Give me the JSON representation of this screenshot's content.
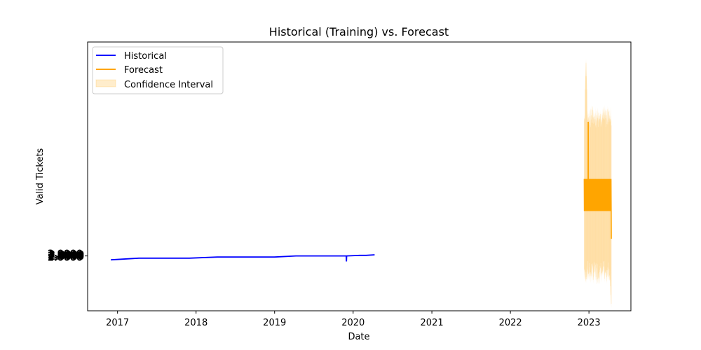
{
  "chart_data": {
    "type": "line",
    "title": "Historical (Training) vs. Forecast",
    "xlabel": "Date",
    "ylabel": "Valid Tickets",
    "xlim": [
      "2016-08-15",
      "2023-07-15"
    ],
    "ylim": [
      -0.95,
      3.9
    ],
    "x_ticks": [
      "2017",
      "2018",
      "2019",
      "2020",
      "2021",
      "2022",
      "2023"
    ],
    "y_ticks_note": "overlapping unreadable tick labels",
    "y_tick_labels": [
      "2.0000",
      "2.0000",
      "2.0000",
      "2.0000",
      "2.0000"
    ],
    "legend": {
      "position": "upper left",
      "entries": [
        {
          "name": "Historical",
          "color": "#0000ff",
          "kind": "line"
        },
        {
          "name": "Forecast",
          "color": "#ffa500",
          "kind": "line"
        },
        {
          "name": "Confidence Interval",
          "color": "#ffa500",
          "kind": "band"
        }
      ]
    },
    "grid": false,
    "series": [
      {
        "name": "Historical",
        "color": "#0000ff",
        "x": [
          "2016-12-01",
          "2017-04-10",
          "2017-12-01",
          "2018-04-10",
          "2018-12-31",
          "2019-04-10",
          "2019-11-30",
          "2019-12-01",
          "2019-12-02",
          "2020-02-01",
          "2020-03-01",
          "2020-04-10"
        ],
        "y": [
          -0.03,
          0.0,
          0.0,
          0.02,
          0.02,
          0.04,
          0.04,
          -0.06,
          0.04,
          0.05,
          0.05,
          0.06
        ]
      },
      {
        "name": "Forecast",
        "color": "#ffa500",
        "x_range": [
          "2022-12-10",
          "2023-04-15"
        ],
        "upper": 1.43,
        "lower": 0.85,
        "spike_max": 2.45,
        "end_low": 0.35
      }
    ],
    "confidence_interval": {
      "x_range": [
        "2022-12-10",
        "2023-04-15"
      ],
      "upper_typical": 2.6,
      "lower_typical": -0.3,
      "upper_max": 3.6,
      "lower_min": -0.9
    }
  }
}
